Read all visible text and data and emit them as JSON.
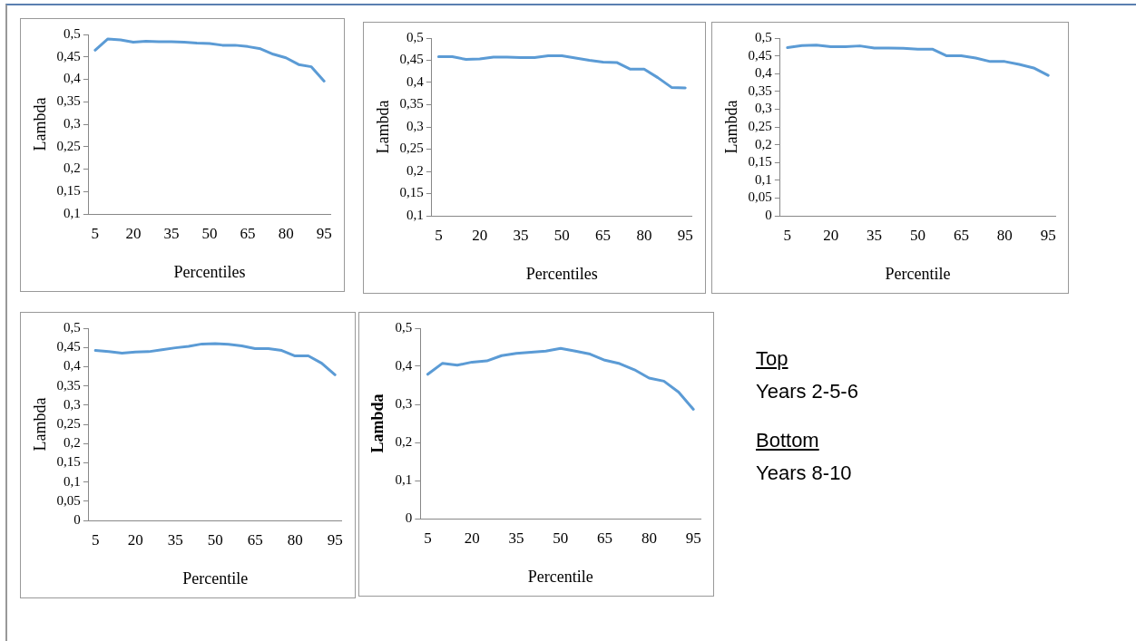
{
  "chart_data": [
    {
      "type": "line",
      "xlabel": "Percentiles",
      "ylabel": "Lambda",
      "categories": [
        "5",
        null,
        null,
        "20",
        null,
        null,
        "35",
        null,
        null,
        "50",
        null,
        null,
        "65",
        null,
        null,
        "80",
        null,
        null,
        "95"
      ],
      "marker": "none",
      "ylim": [
        0.1,
        0.5
      ],
      "yticks": [
        {
          "value": 0.1,
          "label": "0,1"
        },
        {
          "value": 0.15,
          "label": "0,15"
        },
        {
          "value": 0.2,
          "label": "0,2"
        },
        {
          "value": 0.25,
          "label": "0,25"
        },
        {
          "value": 0.3,
          "label": "0,3"
        },
        {
          "value": 0.35,
          "label": "0,35"
        },
        {
          "value": 0.4,
          "label": "0,4"
        },
        {
          "value": 0.45,
          "label": "0,45"
        },
        {
          "value": 0.5,
          "label": "0,5"
        }
      ],
      "series": [
        {
          "color": "#5b9bd5",
          "values": [
            0.465,
            0.49,
            0.488,
            0.483,
            0.485,
            0.484,
            0.484,
            0.483,
            0.481,
            0.48,
            0.476,
            0.476,
            0.473,
            0.468,
            0.456,
            0.448,
            0.433,
            0.428,
            0.396
          ]
        }
      ]
    },
    {
      "type": "line",
      "xlabel": "Percentiles",
      "ylabel": "Lambda",
      "categories": [
        "5",
        null,
        null,
        "20",
        null,
        null,
        "35",
        null,
        null,
        "50",
        null,
        null,
        "65",
        null,
        null,
        "80",
        null,
        null,
        "95"
      ],
      "marker": "none",
      "ylim": [
        0.1,
        0.5
      ],
      "yticks": [
        {
          "value": 0.1,
          "label": "0,1"
        },
        {
          "value": 0.15,
          "label": "0,15"
        },
        {
          "value": 0.2,
          "label": "0,2"
        },
        {
          "value": 0.25,
          "label": "0,25"
        },
        {
          "value": 0.3,
          "label": "0,3"
        },
        {
          "value": 0.35,
          "label": "0,35"
        },
        {
          "value": 0.4,
          "label": "0,4"
        },
        {
          "value": 0.45,
          "label": "0,45"
        },
        {
          "value": 0.5,
          "label": "0,5"
        }
      ],
      "series": [
        {
          "color": "#5b9bd5",
          "values": [
            0.458,
            0.458,
            0.452,
            0.453,
            0.457,
            0.457,
            0.456,
            0.456,
            0.46,
            0.46,
            0.455,
            0.45,
            0.446,
            0.445,
            0.43,
            0.43,
            0.411,
            0.389,
            0.388
          ]
        }
      ]
    },
    {
      "type": "line",
      "xlabel": "Percentile",
      "ylabel": "Lambda",
      "categories": [
        "5",
        null,
        null,
        "20",
        null,
        null,
        "35",
        null,
        null,
        "50",
        null,
        null,
        "65",
        null,
        null,
        "80",
        null,
        null,
        "95"
      ],
      "marker": "none",
      "ylim": [
        0,
        0.5
      ],
      "yticks": [
        {
          "value": 0,
          "label": "0"
        },
        {
          "value": 0.05,
          "label": "0,05"
        },
        {
          "value": 0.1,
          "label": "0,1"
        },
        {
          "value": 0.15,
          "label": "0,15"
        },
        {
          "value": 0.2,
          "label": "0,2"
        },
        {
          "value": 0.25,
          "label": "0,25"
        },
        {
          "value": 0.3,
          "label": "0,3"
        },
        {
          "value": 0.35,
          "label": "0,35"
        },
        {
          "value": 0.4,
          "label": "0,4"
        },
        {
          "value": 0.45,
          "label": "0,45"
        },
        {
          "value": 0.5,
          "label": "0,5"
        }
      ],
      "series": [
        {
          "color": "#5b9bd5",
          "values": [
            0.473,
            0.479,
            0.48,
            0.476,
            0.476,
            0.478,
            0.472,
            0.472,
            0.471,
            0.469,
            0.469,
            0.45,
            0.45,
            0.444,
            0.434,
            0.434,
            0.426,
            0.416,
            0.395
          ]
        }
      ]
    },
    {
      "type": "line",
      "xlabel": "Percentile",
      "ylabel": "Lambda",
      "categories": [
        "5",
        null,
        null,
        "20",
        null,
        null,
        "35",
        null,
        null,
        "50",
        null,
        null,
        "65",
        null,
        null,
        "80",
        null,
        null,
        "95"
      ],
      "marker": "none",
      "ylim": [
        0,
        0.5
      ],
      "yticks": [
        {
          "value": 0,
          "label": "0"
        },
        {
          "value": 0.05,
          "label": "0,05"
        },
        {
          "value": 0.1,
          "label": "0,1"
        },
        {
          "value": 0.15,
          "label": "0,15"
        },
        {
          "value": 0.2,
          "label": "0,2"
        },
        {
          "value": 0.25,
          "label": "0,25"
        },
        {
          "value": 0.3,
          "label": "0,3"
        },
        {
          "value": 0.35,
          "label": "0,35"
        },
        {
          "value": 0.4,
          "label": "0,4"
        },
        {
          "value": 0.45,
          "label": "0,45"
        },
        {
          "value": 0.5,
          "label": "0,5"
        }
      ],
      "series": [
        {
          "color": "#5b9bd5",
          "values": [
            0.442,
            0.439,
            0.435,
            0.438,
            0.439,
            0.444,
            0.449,
            0.453,
            0.459,
            0.46,
            0.458,
            0.454,
            0.447,
            0.447,
            0.442,
            0.428,
            0.428,
            0.409,
            0.379
          ]
        }
      ]
    },
    {
      "type": "line",
      "xlabel": "Percentile",
      "ylabel": "Lambda",
      "categories": [
        "5",
        null,
        null,
        "20",
        null,
        null,
        "35",
        null,
        null,
        "50",
        null,
        null,
        "65",
        null,
        null,
        "80",
        null,
        null,
        "95"
      ],
      "marker": "none",
      "ylim": [
        0,
        0.5
      ],
      "yticks": [
        {
          "value": 0,
          "label": "0"
        },
        {
          "value": 0.1,
          "label": "0,1"
        },
        {
          "value": 0.2,
          "label": "0,2"
        },
        {
          "value": 0.3,
          "label": "0,3"
        },
        {
          "value": 0.4,
          "label": "0,4"
        },
        {
          "value": 0.5,
          "label": "0,5"
        }
      ],
      "series": [
        {
          "color": "#5b9bd5",
          "values": [
            0.379,
            0.408,
            0.403,
            0.411,
            0.414,
            0.428,
            0.434,
            0.437,
            0.44,
            0.447,
            0.44,
            0.432,
            0.416,
            0.407,
            0.391,
            0.369,
            0.361,
            0.332,
            0.287
          ]
        }
      ]
    },
    {
      "type": "other",
      "annotations": [
        "Top",
        "Years 2-5-6",
        "Bottom",
        "Years 8-10"
      ]
    }
  ]
}
